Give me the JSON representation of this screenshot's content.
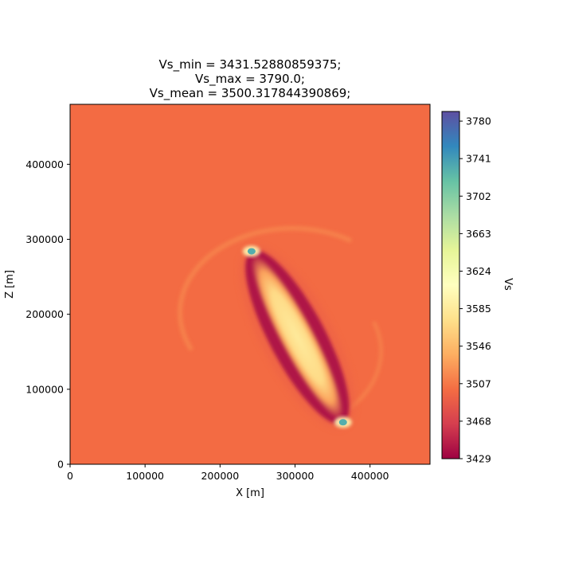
{
  "chart_data": {
    "type": "heatmap",
    "title_lines": [
      "Vs_min = 3431.52880859375;",
      "Vs_max = 3790.0;",
      "Vs_mean = 3500.317844390869;"
    ],
    "xlabel": "X [m]",
    "ylabel": "Z [m]",
    "colorbar_label": "Vs",
    "xlim": [
      0,
      480000
    ],
    "ylim": [
      0,
      480000
    ],
    "x_ticks": [
      0,
      100000,
      200000,
      300000,
      400000
    ],
    "x_tick_labels": [
      "0",
      "100000",
      "200000",
      "300000",
      "400000"
    ],
    "y_ticks": [
      0,
      100000,
      200000,
      300000,
      400000
    ],
    "y_tick_labels": [
      "0",
      "100000",
      "200000",
      "300000",
      "400000"
    ],
    "colorbar_range": [
      3429,
      3790
    ],
    "colorbar_ticks": [
      3429,
      3468,
      3507,
      3546,
      3585,
      3624,
      3663,
      3702,
      3741,
      3780
    ],
    "colorbar_tick_labels": [
      "3429",
      "3468",
      "3507",
      "3546",
      "3585",
      "3624",
      "3663",
      "3702",
      "3741",
      "3780"
    ],
    "colormap": "Spectral",
    "colormap_stops": [
      "#9e0142",
      "#d53e4f",
      "#f46d43",
      "#fdae61",
      "#fee08b",
      "#ffffbf",
      "#e6f598",
      "#abdda4",
      "#66c2a5",
      "#3288bd",
      "#5e4fa2"
    ],
    "background_value": 3500,
    "features": [
      {
        "kind": "rupture-ellipse",
        "center": [
          302000,
          178000
        ],
        "endpoint_a": [
          242000,
          284000
        ],
        "endpoint_b": [
          364000,
          55000
        ],
        "semi_minor": 37000,
        "core_value": 3570,
        "rim_value": 3440
      },
      {
        "kind": "hotspot",
        "at": [
          242000,
          284000
        ],
        "value": 3730
      },
      {
        "kind": "hotspot",
        "at": [
          364000,
          56000
        ],
        "value": 3730
      },
      {
        "kind": "faint-arc",
        "center": [
          300000,
          205000
        ],
        "radius": 150000,
        "value": 3515
      }
    ]
  }
}
